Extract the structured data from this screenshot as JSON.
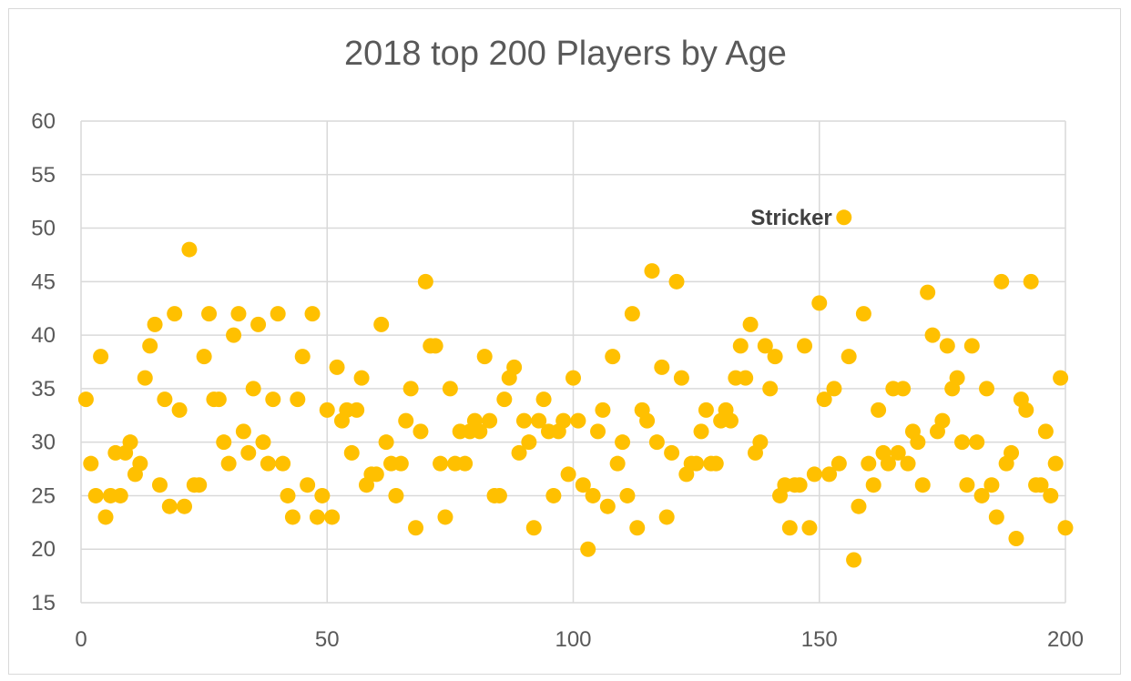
{
  "chart_data": {
    "type": "scatter",
    "title": "2018 top 200 Players by Age",
    "xlabel": "",
    "ylabel": "",
    "xlim": [
      0,
      200
    ],
    "ylim": [
      15,
      60
    ],
    "xticks": [
      0,
      50,
      100,
      150,
      200
    ],
    "yticks": [
      15,
      20,
      25,
      30,
      35,
      40,
      45,
      50,
      55,
      60
    ],
    "grid": true,
    "legend": "none",
    "marker_color": "#FFC000",
    "series": [
      {
        "x": [
          1,
          2,
          3,
          4,
          5,
          6,
          7,
          8,
          9,
          10,
          11,
          12,
          13,
          14,
          15,
          16,
          17,
          18,
          19,
          20,
          21,
          22,
          23,
          24,
          25,
          26,
          27,
          28,
          29,
          30,
          31,
          32,
          33,
          34,
          35,
          36,
          37,
          38,
          39,
          40,
          41,
          42,
          43,
          44,
          45,
          46,
          47,
          48,
          49,
          50,
          51,
          52,
          53,
          54,
          55,
          56,
          57,
          58,
          59,
          60,
          61,
          62,
          63,
          64,
          65,
          66,
          67,
          68,
          69,
          70,
          71,
          72,
          73,
          74,
          75,
          76,
          77,
          78,
          79,
          80,
          81,
          82,
          83,
          84,
          85,
          86,
          87,
          88,
          89,
          90,
          91,
          92,
          93,
          94,
          95,
          96,
          97,
          98,
          99,
          100,
          101,
          102,
          103,
          104,
          105,
          106,
          107,
          108,
          109,
          110,
          111,
          112,
          113,
          114,
          115,
          116,
          117,
          118,
          119,
          120,
          121,
          122,
          123,
          124,
          125,
          126,
          127,
          128,
          129,
          130,
          131,
          132,
          133,
          134,
          135,
          136,
          137,
          138,
          139,
          140,
          141,
          142,
          143,
          144,
          145,
          146,
          147,
          148,
          149,
          150,
          151,
          152,
          153,
          154,
          155,
          156,
          157,
          158,
          159,
          160,
          161,
          162,
          163,
          164,
          165,
          166,
          167,
          168,
          169,
          170,
          171,
          172,
          173,
          174,
          175,
          176,
          177,
          178,
          179,
          180,
          181,
          182,
          183,
          184,
          185,
          186,
          187,
          188,
          189,
          190,
          191,
          192,
          193,
          194,
          195,
          196,
          197,
          198,
          199,
          200
        ],
        "y": [
          34,
          28,
          25,
          38,
          23,
          25,
          29,
          25,
          29,
          30,
          27,
          28,
          36,
          39,
          41,
          26,
          34,
          24,
          42,
          33,
          24,
          48,
          26,
          26,
          38,
          42,
          34,
          34,
          30,
          28,
          40,
          42,
          31,
          29,
          35,
          41,
          30,
          28,
          34,
          42,
          28,
          25,
          23,
          34,
          38,
          26,
          42,
          23,
          25,
          33,
          23,
          37,
          32,
          33,
          29,
          33,
          36,
          26,
          27,
          27,
          41,
          30,
          28,
          25,
          28,
          32,
          35,
          22,
          31,
          45,
          39,
          39,
          28,
          23,
          35,
          28,
          31,
          28,
          31,
          32,
          31,
          38,
          32,
          25,
          25,
          34,
          36,
          37,
          29,
          32,
          30,
          22,
          32,
          34,
          31,
          25,
          31,
          32,
          27,
          36,
          32,
          26,
          20,
          25,
          31,
          33,
          24,
          38,
          28,
          30,
          25,
          42,
          22,
          33,
          32,
          46,
          30,
          37,
          23,
          29,
          45,
          36,
          27,
          28,
          28,
          31,
          33,
          28,
          28,
          32,
          33,
          32,
          36,
          39,
          36,
          41,
          29,
          30,
          39,
          35,
          38,
          25,
          26,
          22,
          26,
          26,
          39,
          22,
          27,
          43,
          34,
          27,
          35,
          28,
          51,
          38,
          19,
          24,
          42,
          28,
          26,
          33,
          29,
          28,
          35,
          29,
          35,
          28,
          31,
          30,
          26,
          44,
          40,
          31,
          32,
          39,
          35,
          36,
          30,
          26,
          39,
          30,
          25,
          35,
          26,
          23,
          45,
          28,
          29,
          21,
          34,
          33,
          45,
          26,
          26,
          31,
          25,
          28,
          36,
          22
        ]
      }
    ],
    "annotations": [
      {
        "x": 155,
        "y": 51,
        "text": "Stricker"
      }
    ]
  }
}
